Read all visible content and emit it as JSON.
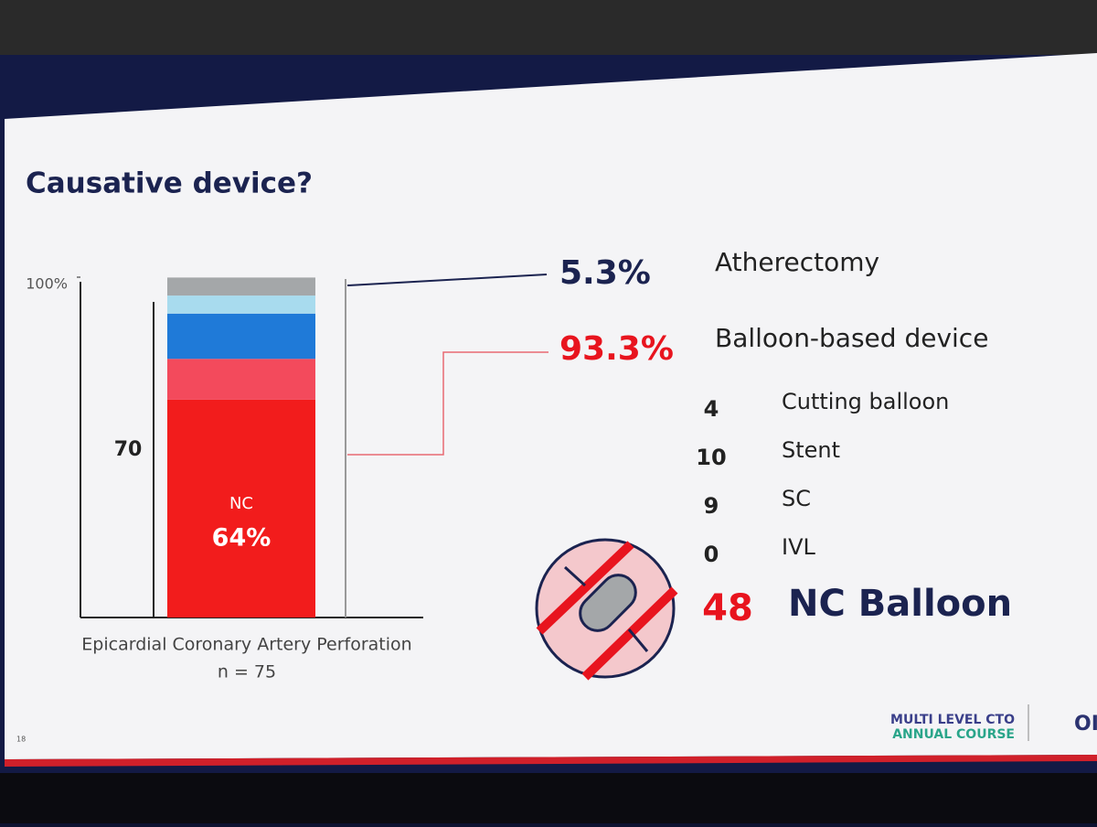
{
  "chart_data": {
    "type": "stacked-bar",
    "title": "Causative device?",
    "series": [
      {
        "name": "NC",
        "color": "#f21c1c",
        "values": [
          64
        ],
        "value_labels": [
          "64%"
        ]
      },
      {
        "color": "#f34a5c",
        "values": [
          12
        ]
      },
      {
        "color": "#1f7ad8",
        "values": [
          13.3
        ]
      },
      {
        "color": "#a8dbee",
        "values": [
          5.3
        ]
      },
      {
        "color": "#a4a7a9",
        "values": [
          5.3
        ]
      }
    ],
    "ylim": [
      0,
      100
    ],
    "yticks": [
      {
        "value": 100,
        "label": "100%"
      }
    ],
    "annotation": "70",
    "xlabel": "Epicardial Coronary Artery Perforation",
    "n_label": "n = 75",
    "summary": [
      {
        "value": "5.3%",
        "label": "Atherectomy",
        "color": "#1b2350"
      },
      {
        "value": "93.3%",
        "label": "Balloon-based device",
        "color": "#e8141e"
      }
    ],
    "breakdown": [
      {
        "count": 4,
        "label": "Cutting balloon"
      },
      {
        "count": 10,
        "label": "Stent"
      },
      {
        "count": 9,
        "label": "SC"
      },
      {
        "count": 0,
        "label": "IVL"
      }
    ],
    "highlight": {
      "count": 48,
      "label": "NC Balloon"
    },
    "slide_number": "18",
    "logo": [
      "MULTI LEVEL CTO",
      "ANNUAL COURSE",
      "OI"
    ]
  }
}
